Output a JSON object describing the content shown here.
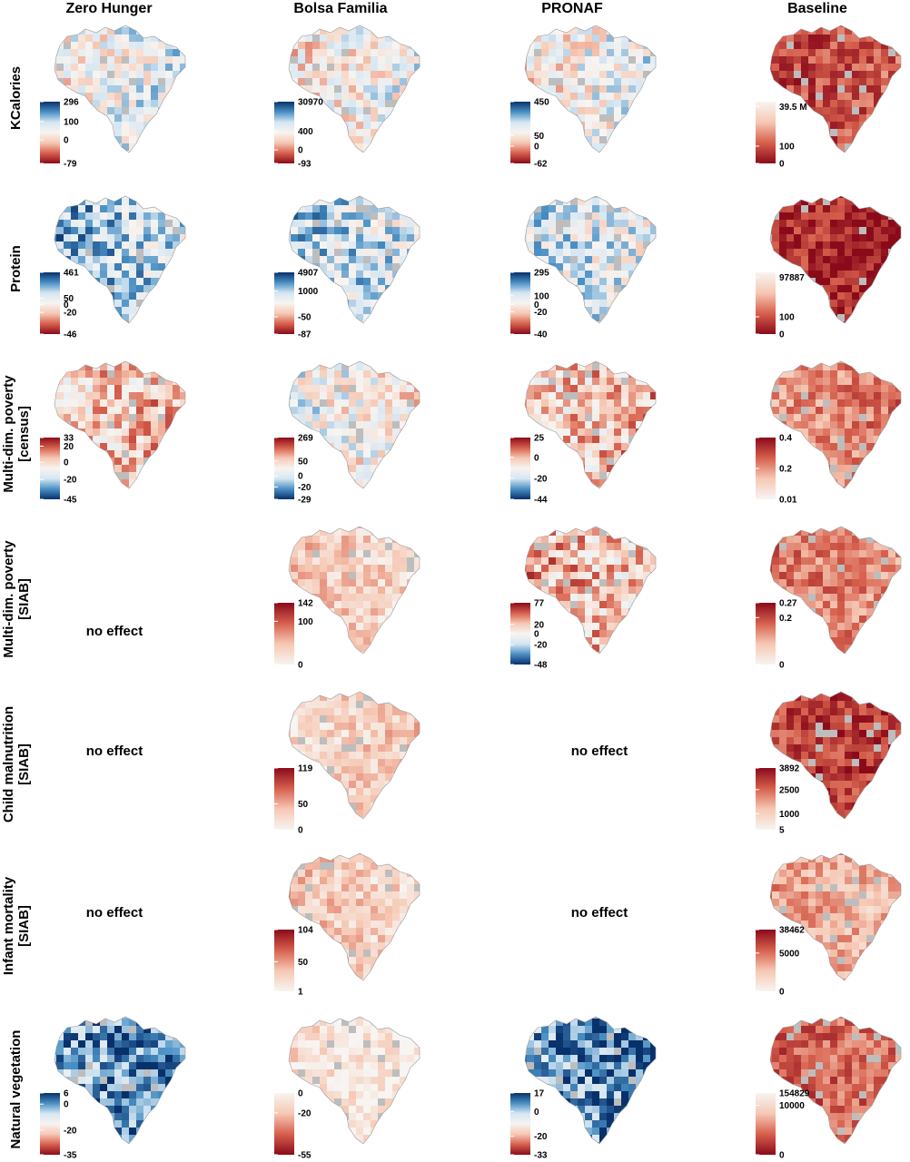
{
  "chart_data": {
    "type": "heatmap",
    "columns": [
      "Zero Hunger",
      "Bolsa Familia",
      "PRONAF",
      "Baseline"
    ],
    "rows": [
      "KCalories",
      "Protein",
      "Multi-dim. poverty\n[census]",
      "Multi-dim. poverty\n[SIAB]",
      "Child malnutrition\n[SIAB]",
      "Infant mortality\n[SIAB]",
      "Natural vegetation"
    ],
    "no_effect_label": "no effect",
    "colors": {
      "deep_blue": "#08306b",
      "mid_blue": "#4a90c4",
      "light_blue": "#d6e6f2",
      "neutral": "#f7f4f1",
      "light_red": "#f6c8b4",
      "mid_red": "#d6604d",
      "deep_red": "#8b0a1a",
      "nodata": "#bdbdbd"
    },
    "panels": [
      {
        "row": 0,
        "col": 0,
        "scheme": "div_blue_top",
        "ticks": [
          "296",
          "100",
          "0",
          "-79"
        ],
        "tick_pos": [
          0,
          0.32,
          0.62,
          1
        ],
        "mean": 0.45
      },
      {
        "row": 0,
        "col": 1,
        "scheme": "div_blue_top",
        "ticks": [
          "30970",
          "400",
          "0",
          "-93"
        ],
        "tick_pos": [
          0,
          0.48,
          0.78,
          1
        ],
        "mean": 0.5
      },
      {
        "row": 0,
        "col": 2,
        "scheme": "div_blue_top",
        "ticks": [
          "450",
          "50",
          "0",
          "-62"
        ],
        "tick_pos": [
          0,
          0.55,
          0.72,
          1
        ],
        "mean": 0.48
      },
      {
        "row": 0,
        "col": 3,
        "scheme": "seq_red_bottom",
        "ticks": [
          "39.5 M",
          "100",
          "0"
        ],
        "tick_pos": [
          0.08,
          0.72,
          1
        ],
        "mean": 0.72
      },
      {
        "row": 1,
        "col": 0,
        "scheme": "div_blue_top",
        "ticks": [
          "461",
          "50",
          "0",
          "-20",
          "-46"
        ],
        "tick_pos": [
          0,
          0.42,
          0.52,
          0.65,
          1
        ],
        "mean": 0.3
      },
      {
        "row": 1,
        "col": 1,
        "scheme": "div_blue_top",
        "ticks": [
          "4907",
          "1000",
          "-50",
          "-87"
        ],
        "tick_pos": [
          0,
          0.3,
          0.72,
          1
        ],
        "mean": 0.35
      },
      {
        "row": 1,
        "col": 2,
        "scheme": "div_blue_top",
        "ticks": [
          "295",
          "100",
          "0",
          "-20",
          "-40"
        ],
        "tick_pos": [
          0,
          0.38,
          0.52,
          0.64,
          1
        ],
        "mean": 0.4
      },
      {
        "row": 1,
        "col": 3,
        "scheme": "seq_red_bottom",
        "ticks": [
          "97887",
          "100",
          "0"
        ],
        "tick_pos": [
          0.08,
          0.72,
          1
        ],
        "mean": 0.9
      },
      {
        "row": 2,
        "col": 0,
        "scheme": "div_red_top",
        "ticks": [
          "33",
          "20",
          "0",
          "-20",
          "-45"
        ],
        "tick_pos": [
          0,
          0.14,
          0.4,
          0.68,
          1
        ],
        "mean": 0.35
      },
      {
        "row": 2,
        "col": 1,
        "scheme": "div_red_top",
        "ticks": [
          "269",
          "50",
          "0",
          "-20",
          "-29"
        ],
        "tick_pos": [
          0,
          0.38,
          0.62,
          0.8,
          1
        ],
        "mean": 0.5
      },
      {
        "row": 2,
        "col": 2,
        "scheme": "div_red_top",
        "ticks": [
          "25",
          "0",
          "-20",
          "-44"
        ],
        "tick_pos": [
          0,
          0.32,
          0.66,
          1
        ],
        "mean": 0.35
      },
      {
        "row": 2,
        "col": 3,
        "scheme": "seq_red_top",
        "ticks": [
          "0.4",
          "0.2",
          "0.01"
        ],
        "tick_pos": [
          0,
          0.5,
          1
        ],
        "mean": 0.45
      },
      {
        "row": 3,
        "col": 0,
        "no_effect": true
      },
      {
        "row": 3,
        "col": 1,
        "scheme": "seq_red_top",
        "ticks": [
          "142",
          "100",
          "0"
        ],
        "tick_pos": [
          0,
          0.3,
          1
        ],
        "mean": 0.75
      },
      {
        "row": 3,
        "col": 2,
        "scheme": "div_red_top",
        "ticks": [
          "77",
          "20",
          "0",
          "-20",
          "-48"
        ],
        "tick_pos": [
          0,
          0.35,
          0.5,
          0.68,
          1
        ],
        "mean": 0.35
      },
      {
        "row": 3,
        "col": 3,
        "scheme": "seq_red_top",
        "ticks": [
          "0.27",
          "0.2",
          "0"
        ],
        "tick_pos": [
          0,
          0.24,
          1
        ],
        "mean": 0.45
      },
      {
        "row": 4,
        "col": 0,
        "no_effect": true
      },
      {
        "row": 4,
        "col": 1,
        "scheme": "seq_red_top",
        "ticks": [
          "119",
          "50",
          "0"
        ],
        "tick_pos": [
          0,
          0.58,
          1
        ],
        "mean": 0.75
      },
      {
        "row": 4,
        "col": 2,
        "no_effect": true
      },
      {
        "row": 4,
        "col": 3,
        "scheme": "seq_red_top",
        "ticks": [
          "3892",
          "2500",
          "1000",
          "5"
        ],
        "tick_pos": [
          0,
          0.35,
          0.74,
          1
        ],
        "mean": 0.2
      },
      {
        "row": 5,
        "col": 0,
        "no_effect": true
      },
      {
        "row": 5,
        "col": 1,
        "scheme": "seq_red_top",
        "ticks": [
          "104",
          "50",
          "1"
        ],
        "tick_pos": [
          0,
          0.52,
          1
        ],
        "mean": 0.75
      },
      {
        "row": 5,
        "col": 2,
        "no_effect": true
      },
      {
        "row": 5,
        "col": 3,
        "scheme": "seq_red_top",
        "ticks": [
          "38462",
          "5000",
          "0"
        ],
        "tick_pos": [
          0,
          0.38,
          1
        ],
        "mean": 0.6
      },
      {
        "row": 6,
        "col": 0,
        "scheme": "div_blue_top",
        "ticks": [
          "6",
          "0",
          "-20",
          "-35"
        ],
        "tick_pos": [
          0,
          0.18,
          0.6,
          1
        ],
        "mean": 0.15
      },
      {
        "row": 6,
        "col": 1,
        "scheme": "seq_red_bottom",
        "ticks": [
          "0",
          "-20",
          "-55"
        ],
        "tick_pos": [
          0,
          0.32,
          1
        ],
        "mean": 0.1
      },
      {
        "row": 6,
        "col": 2,
        "scheme": "div_blue_top",
        "ticks": [
          "17",
          "0",
          "-20",
          "-33"
        ],
        "tick_pos": [
          0,
          0.3,
          0.7,
          1
        ],
        "mean": 0.15
      },
      {
        "row": 6,
        "col": 3,
        "scheme": "seq_red_bottom",
        "ticks": [
          "154829",
          "10000",
          "0"
        ],
        "tick_pos": [
          0,
          0.2,
          1
        ],
        "mean": 0.65
      }
    ]
  }
}
